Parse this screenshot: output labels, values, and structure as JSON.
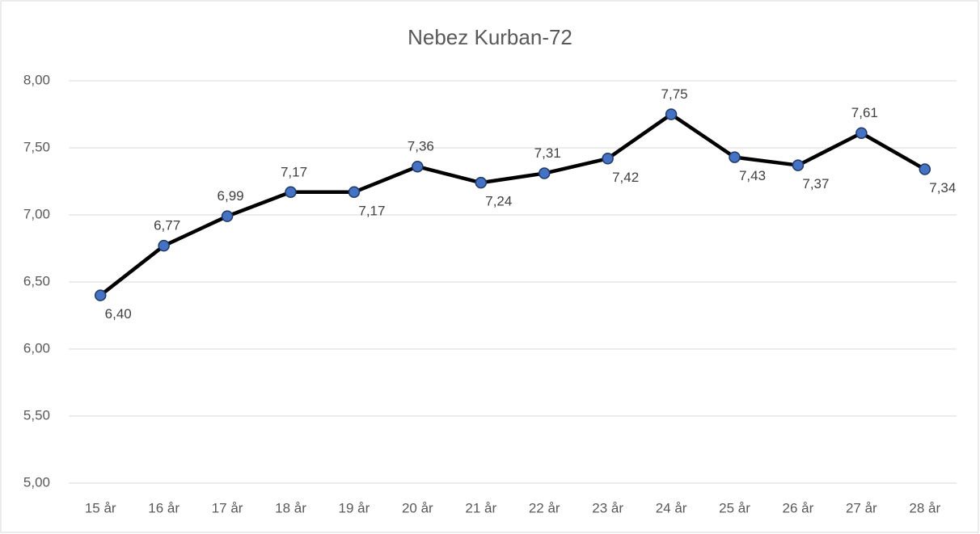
{
  "chart_data": {
    "type": "line",
    "title": "Nebez Kurban-72",
    "categories": [
      "15 år",
      "16 år",
      "17 år",
      "18 år",
      "19 år",
      "20 år",
      "21 år",
      "22 år",
      "23 år",
      "24 år",
      "25 år",
      "26 år",
      "27 år",
      "28 år"
    ],
    "series": [
      {
        "name": "Nebez Kurban-72",
        "color": "#000000",
        "marker_color": "#4472c4",
        "values": [
          6.4,
          6.77,
          6.99,
          7.17,
          7.17,
          7.36,
          7.24,
          7.31,
          7.42,
          7.75,
          7.43,
          7.37,
          7.61,
          7.34
        ],
        "value_labels": [
          "6,40",
          "6,77",
          "6,99",
          "7,17",
          "7,17",
          "7,36",
          "7,24",
          "7,31",
          "7,42",
          "7,75",
          "7,43",
          "7,37",
          "7,61",
          "7,34"
        ]
      }
    ],
    "ylim": [
      5,
      8
    ],
    "yticks": [
      {
        "value": 5,
        "label": "5,00"
      },
      {
        "value": 5.5,
        "label": "5,50"
      },
      {
        "value": 6,
        "label": "6,00"
      },
      {
        "value": 6.5,
        "label": "6,50"
      },
      {
        "value": 7,
        "label": "7,00"
      },
      {
        "value": 7.5,
        "label": "7,50"
      },
      {
        "value": 8,
        "label": "8,00"
      }
    ],
    "grid": true
  }
}
